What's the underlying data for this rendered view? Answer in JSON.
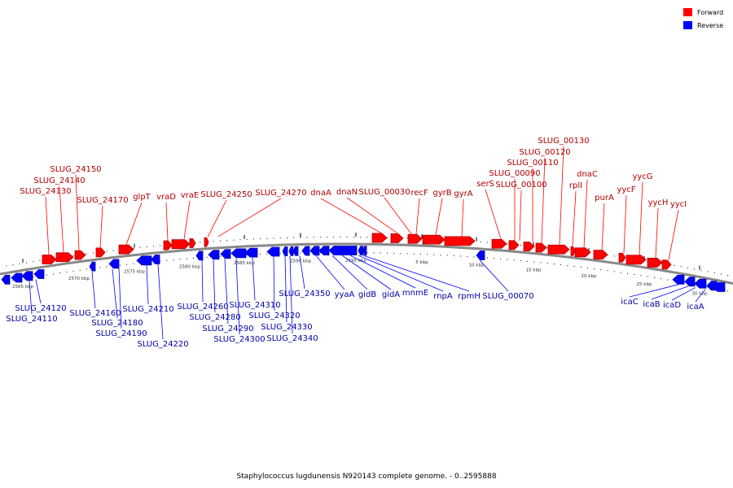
{
  "colors": {
    "forward": "#ff0000",
    "forward_dark": "#b00000",
    "reverse": "#0000ff",
    "reverse_dark": "#0000a8",
    "backbone": "#888888",
    "tick": "#000000"
  },
  "legend": {
    "forward_label": "Forward",
    "reverse_label": "Reverse"
  },
  "caption": "Staphylococcus lugdunensis N920143 complete genome. - 0..2595888",
  "tick_labels": [
    "2565 kbp",
    "2570 kbp",
    "2575 kbp",
    "2580 kbp",
    "2585 kbp",
    "2590 kbp",
    "2595 kbp",
    "5 kbp",
    "10 kbp",
    "15 kbp",
    "20 kbp",
    "25 kbp",
    "30 kbp"
  ],
  "forward_genes": [
    "SLUG_24150",
    "SLUG_24140",
    "SLUG_24130",
    "SLUG_24170",
    "glpT",
    "vraD",
    "vraE",
    "SLUG_24250",
    "SLUG_24270",
    "dnaA",
    "dnaN",
    "SLUG_00030",
    "recF",
    "gyrB",
    "gyrA",
    "serS",
    "SLUG_00090",
    "SLUG_00100",
    "SLUG_00110",
    "SLUG_00120",
    "SLUG_00130",
    "rplI",
    "dnaC",
    "purA",
    "yycF",
    "yycG",
    "yycH",
    "yycI"
  ],
  "reverse_genes": [
    "SLUG_24120",
    "SLUG_24110",
    "SLUG_24160",
    "SLUG_24180",
    "SLUG_24190",
    "SLUG_24210",
    "SLUG_24220",
    "SLUG_24260",
    "SLUG_24280",
    "SLUG_24290",
    "SLUG_24300",
    "SLUG_24310",
    "SLUG_24320",
    "SLUG_24330",
    "SLUG_24340",
    "SLUG_24350",
    "yyaA",
    "gidB",
    "gidA",
    "mnmE",
    "rnpA",
    "rpmH",
    "SLUG_00070",
    "icaC",
    "icaB",
    "icaD",
    "icaA"
  ]
}
